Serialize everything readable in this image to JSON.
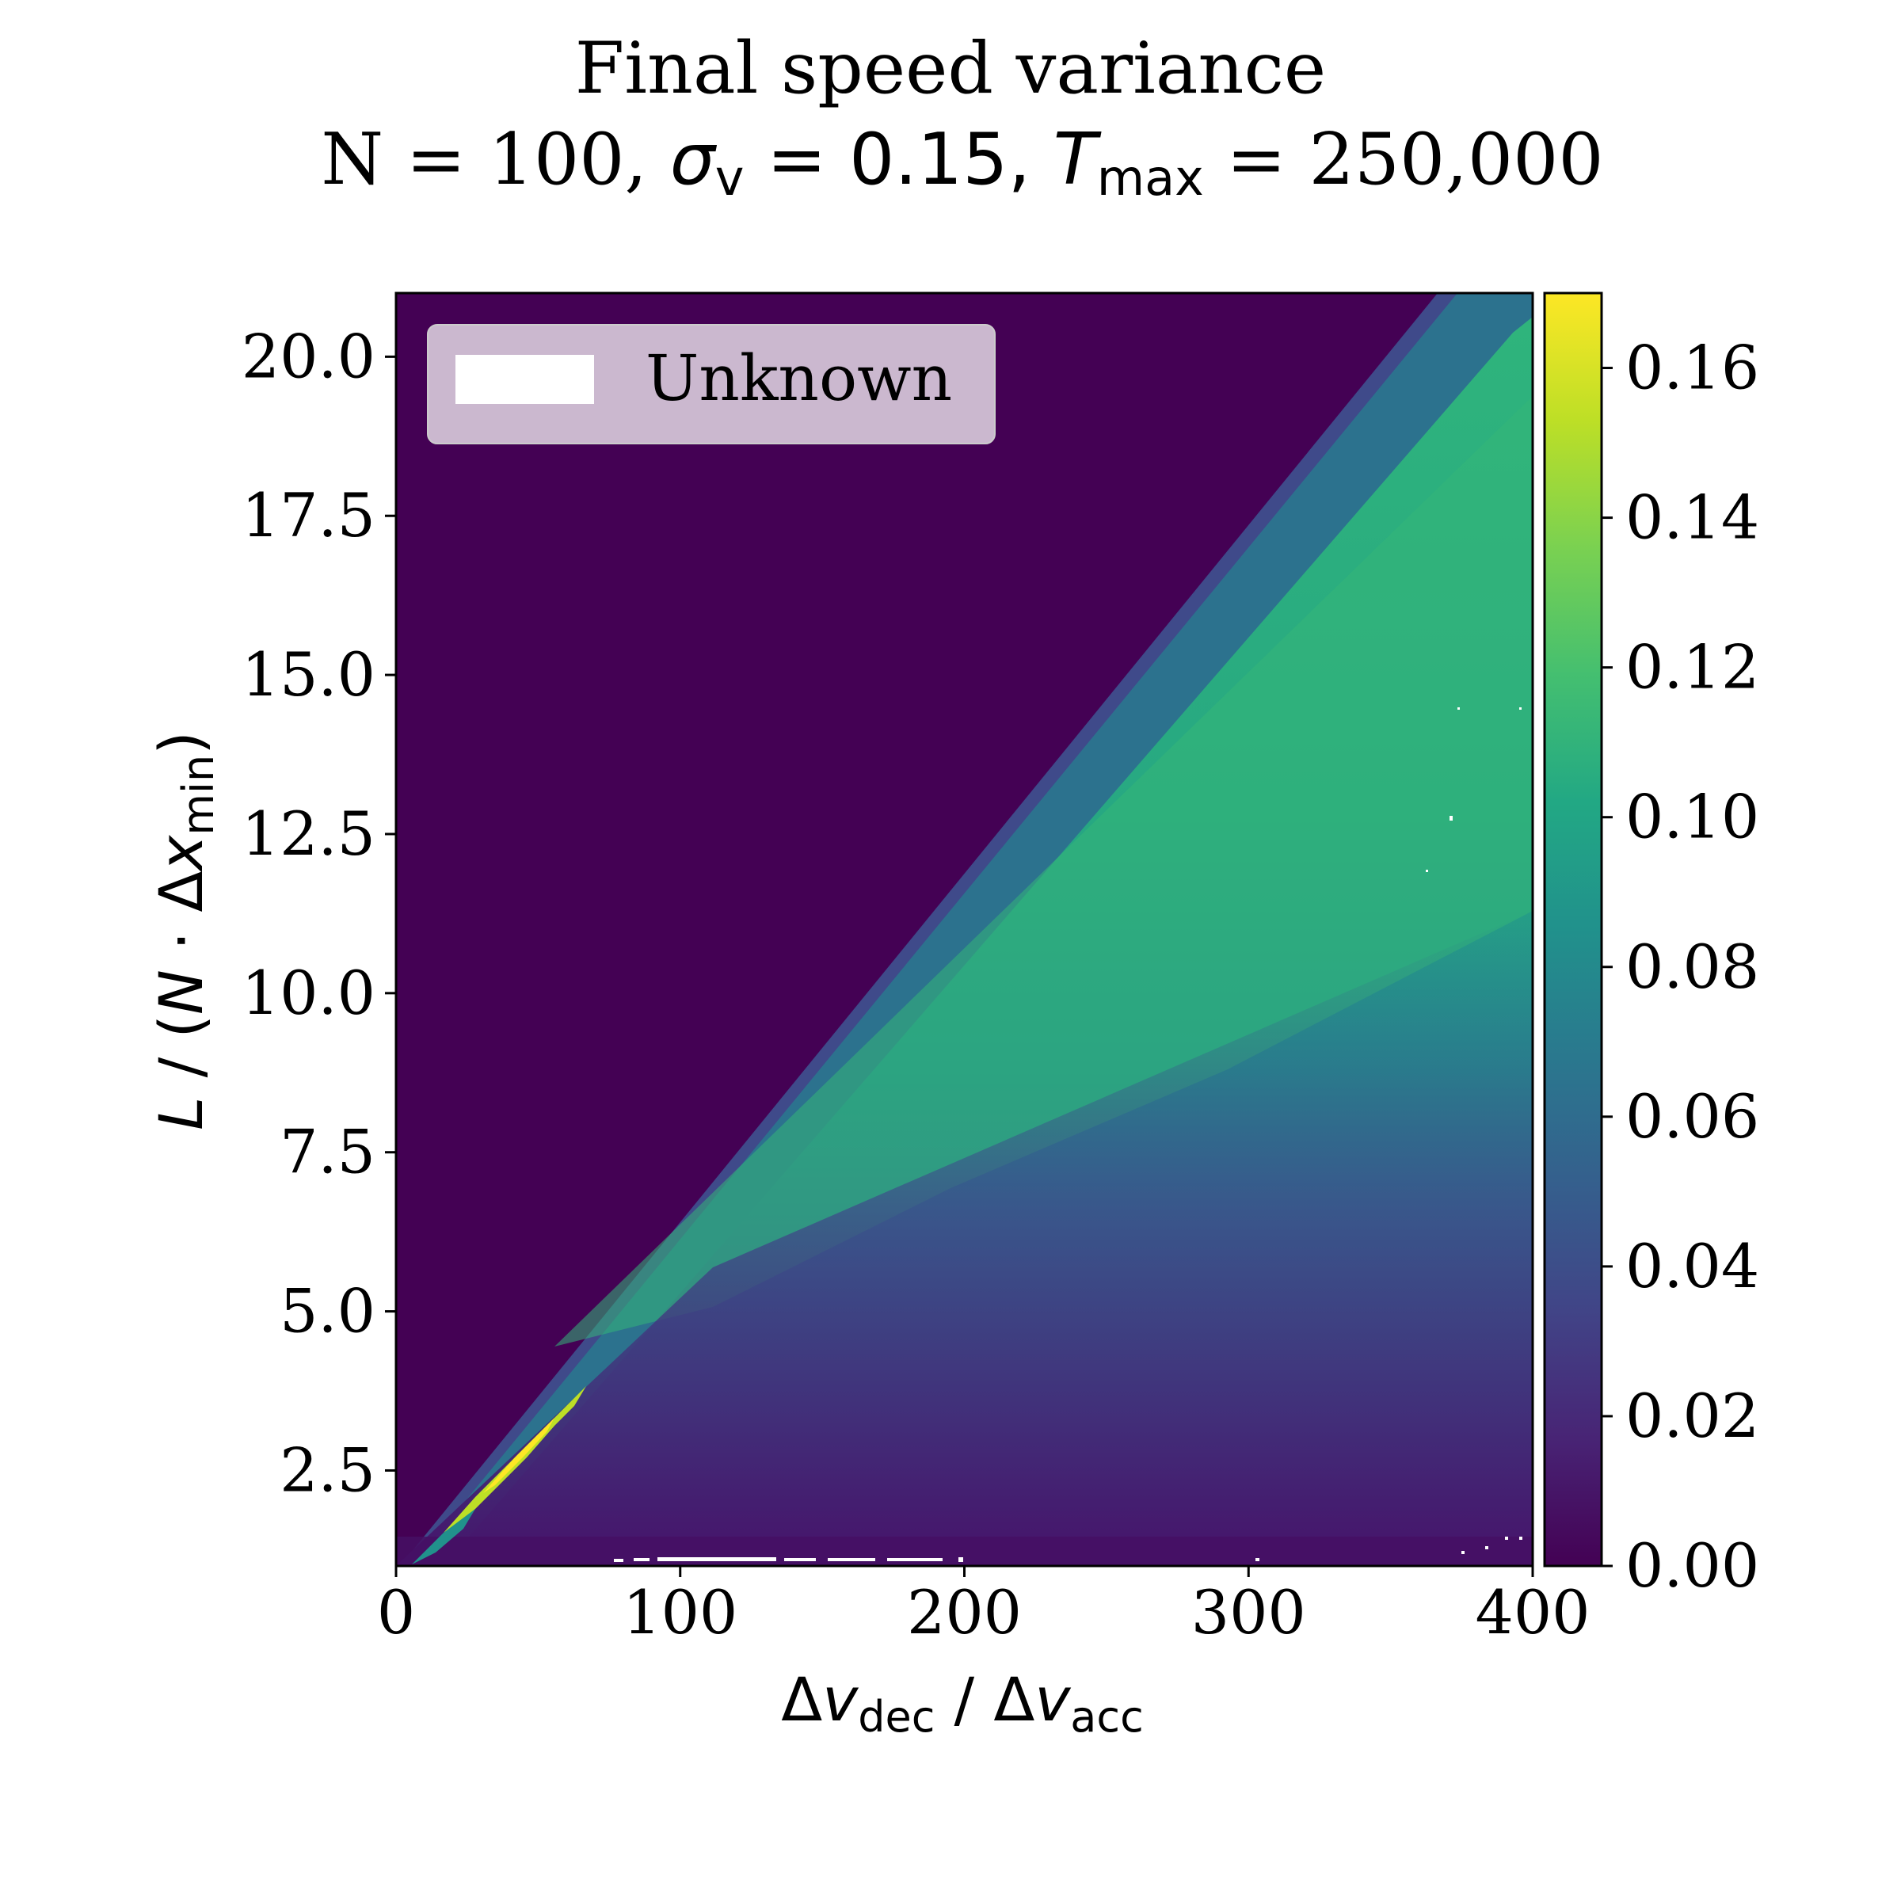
{
  "chart_data": {
    "type": "heatmap",
    "title": {
      "line1": "Final speed variance",
      "line2_prefix": "N = 100, ",
      "sigma_symbol": "σ",
      "sigma_sub": "v",
      "sigma_eq": " = 0.15, ",
      "t_symbol": "T",
      "t_sub": "max",
      "t_eq": " = 250,000"
    },
    "xlabel": {
      "d1": "Δ",
      "v1": "v",
      "s1": "dec",
      "sep": " / ",
      "d2": "Δ",
      "v2": "v",
      "s2": "acc"
    },
    "ylabel": {
      "pre": "L",
      "mid": " / (",
      "n": "N",
      "dot": " · Δ",
      "x": "x",
      "sub": "min",
      "close": ")"
    },
    "xlim": [
      0,
      400
    ],
    "ylim": [
      1.0,
      21.0
    ],
    "xticks": [
      0,
      100,
      200,
      300,
      400
    ],
    "xtick_labels": [
      "0",
      "100",
      "200",
      "300",
      "400"
    ],
    "yticks": [
      2.5,
      5.0,
      7.5,
      10.0,
      12.5,
      15.0,
      17.5,
      20.0
    ],
    "ytick_labels": [
      "2.5",
      "5.0",
      "7.5",
      "10.0",
      "12.5",
      "15.0",
      "17.5",
      "20.0"
    ],
    "colorbar": {
      "colormap": "viridis",
      "range": [
        0.0,
        0.17
      ],
      "ticks": [
        0.0,
        0.02,
        0.04,
        0.06,
        0.08,
        0.1,
        0.12,
        0.14,
        0.16
      ],
      "tick_labels": [
        "0.00",
        "0.02",
        "0.04",
        "0.06",
        "0.08",
        "0.10",
        "0.12",
        "0.14",
        "0.16"
      ]
    },
    "legend": {
      "placement": "upper-left",
      "entries": [
        {
          "label": "Unknown",
          "color": "#ffffff"
        }
      ]
    },
    "regions": [
      {
        "name": "upper-left",
        "value": 0.0,
        "bounds": "L above ~0.052·Δv + 0.6"
      },
      {
        "name": "boundary-band",
        "value": 0.06
      },
      {
        "name": "interior",
        "value_range": [
          0.1,
          0.12
        ]
      },
      {
        "name": "lower-right",
        "value_range": [
          0.0,
          0.04
        ]
      },
      {
        "name": "hot-streak",
        "x_range": [
          20,
          70
        ],
        "y_range": [
          1.8,
          3.8
        ],
        "value_range": [
          0.14,
          0.17
        ]
      }
    ],
    "grid": false
  }
}
